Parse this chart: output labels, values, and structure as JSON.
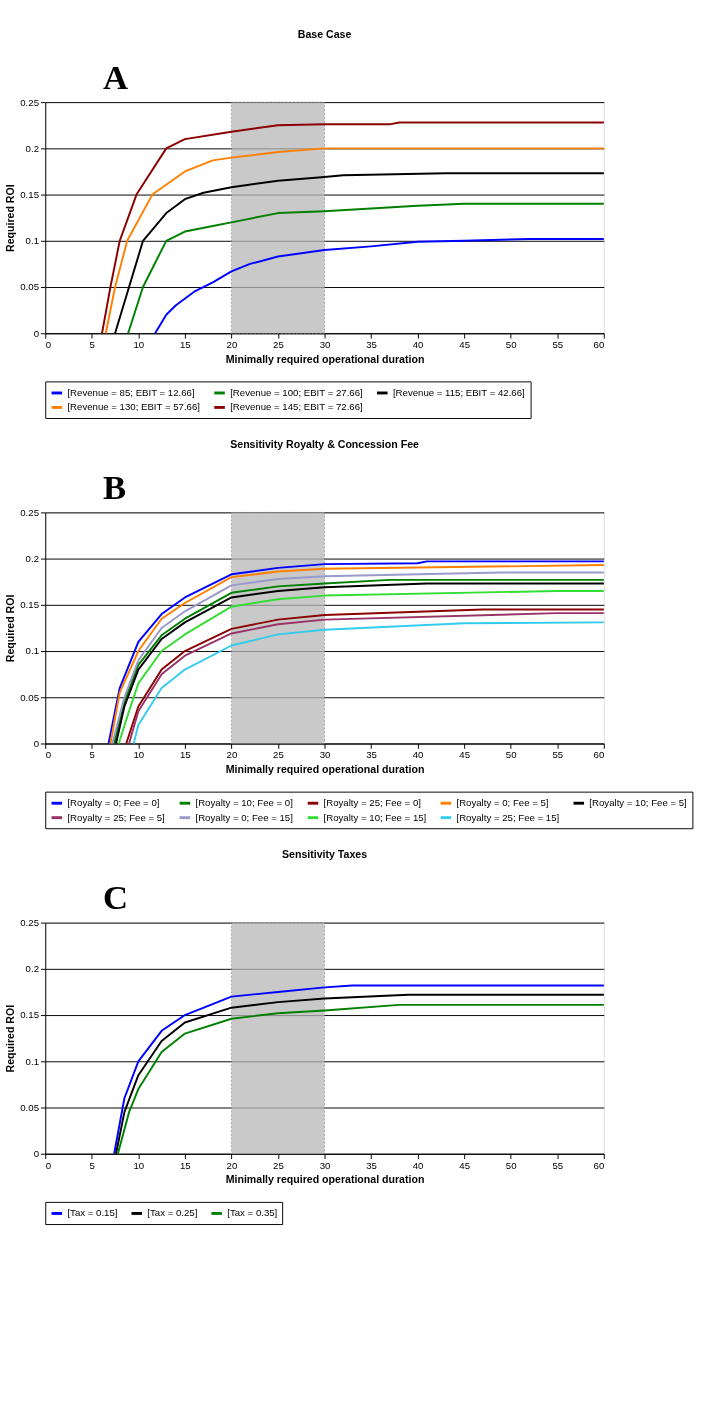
{
  "chart_data": [
    {
      "type": "line",
      "title": "Base Case",
      "annotations": [
        "A"
      ],
      "xlabel": "Minimally required operational duration",
      "ylabel": "Required ROI",
      "xlim": [
        0,
        60
      ],
      "ylim": [
        0,
        0.25
      ],
      "xticks": [
        0,
        5,
        10,
        15,
        20,
        25,
        30,
        35,
        40,
        45,
        50,
        55,
        60
      ],
      "yticks": [
        0,
        0.05,
        0.1,
        0.15,
        0.2,
        0.25
      ],
      "grid": "y",
      "legend": "bottom",
      "bands": [
        {
          "axis": "x",
          "from": 20,
          "to": 30,
          "color": "#b8b8b8"
        }
      ],
      "series": [
        {
          "name": "[Revenue = 85; EBIT = 12.66]",
          "color": "#0000ff",
          "x": [
            11.8,
            13,
            14,
            16,
            18,
            20,
            22,
            25,
            30,
            35,
            40,
            45,
            52,
            60
          ],
          "values": [
            0,
            0.02,
            0.03,
            0.045,
            0.055,
            0.067,
            0.075,
            0.083,
            0.09,
            0.094,
            0.099,
            0.1,
            0.102,
            0.102
          ]
        },
        {
          "name": "[Revenue = 100; EBIT = 27.66]",
          "color": "#008000",
          "x": [
            8.9,
            10.5,
            12,
            13,
            15,
            18,
            20,
            25,
            30,
            35,
            40,
            45,
            60
          ],
          "values": [
            0,
            0.05,
            0.08,
            0.1,
            0.11,
            0.116,
            0.12,
            0.13,
            0.132,
            0.135,
            0.138,
            0.14,
            0.14
          ]
        },
        {
          "name": "[Revenue = 115; EBIT = 42.66]",
          "color": "#000000",
          "x": [
            7.5,
            9,
            10.5,
            13,
            15,
            17,
            20,
            25,
            30,
            32,
            43,
            60
          ],
          "values": [
            0,
            0.05,
            0.1,
            0.13,
            0.145,
            0.152,
            0.158,
            0.165,
            0.169,
            0.171,
            0.173,
            0.173
          ]
        },
        {
          "name": "[Revenue = 130; EBIT = 57.66]",
          "color": "#ff7f00",
          "x": [
            6.5,
            7.5,
            8.8,
            11.5,
            15,
            18,
            20,
            25,
            30,
            60
          ],
          "values": [
            0,
            0.05,
            0.1,
            0.15,
            0.175,
            0.187,
            0.19,
            0.196,
            0.2,
            0.2
          ]
        },
        {
          "name": "[Revenue = 145; EBIT = 72.66]",
          "color": "#8b0000",
          "x": [
            6.1,
            7,
            8,
            9.8,
            13,
            15,
            20,
            25,
            30,
            37,
            38,
            60
          ],
          "values": [
            0,
            0.05,
            0.1,
            0.15,
            0.2,
            0.21,
            0.218,
            0.225,
            0.226,
            0.226,
            0.228,
            0.228
          ]
        }
      ]
    },
    {
      "type": "line",
      "title": "Sensitivity Royalty & Concession Fee",
      "annotations": [
        "B"
      ],
      "xlabel": "Minimally required operational duration",
      "ylabel": "Required ROI",
      "xlim": [
        0,
        60
      ],
      "ylim": [
        0,
        0.25
      ],
      "xticks": [
        0,
        5,
        10,
        15,
        20,
        25,
        30,
        35,
        40,
        45,
        50,
        55,
        60
      ],
      "yticks": [
        0,
        0.05,
        0.1,
        0.15,
        0.2,
        0.25
      ],
      "grid": "y",
      "legend": "bottom",
      "bands": [
        {
          "axis": "x",
          "from": 20,
          "to": 30,
          "color": "#b8b8b8"
        }
      ],
      "series": [
        {
          "name": "[Royalty = 0; Fee = 0]",
          "color": "#0000ff",
          "x": [
            6.8,
            8,
            10,
            12.5,
            15,
            20,
            25,
            30,
            40,
            41,
            60
          ],
          "values": [
            0,
            0.06,
            0.11,
            0.14,
            0.158,
            0.183,
            0.19,
            0.194,
            0.195,
            0.197,
            0.197
          ]
        },
        {
          "name": "[Royalty = 10; Fee = 0]",
          "color": "#008000",
          "x": [
            7.4,
            8.5,
            10,
            12.5,
            15,
            20,
            25,
            30,
            37,
            60
          ],
          "values": [
            0,
            0.045,
            0.085,
            0.117,
            0.135,
            0.163,
            0.17,
            0.173,
            0.177,
            0.177
          ]
        },
        {
          "name": "[Royalty = 25; Fee = 0]",
          "color": "#8b0000",
          "x": [
            8.7,
            10,
            12.5,
            15,
            20,
            25,
            30,
            47,
            60
          ],
          "values": [
            0,
            0.04,
            0.08,
            0.1,
            0.124,
            0.134,
            0.139,
            0.145,
            0.145
          ]
        },
        {
          "name": "[Royalty = 0; Fee = 5]",
          "color": "#ff7f00",
          "x": [
            7,
            8,
            10,
            12.5,
            15,
            20,
            25,
            30,
            60
          ],
          "values": [
            0,
            0.055,
            0.1,
            0.135,
            0.152,
            0.18,
            0.186,
            0.189,
            0.193
          ]
        },
        {
          "name": "[Royalty = 10; Fee = 5]",
          "color": "#000000",
          "x": [
            7.6,
            8.5,
            10,
            12.5,
            15,
            20,
            25,
            30,
            41,
            60
          ],
          "values": [
            0,
            0.04,
            0.08,
            0.113,
            0.131,
            0.158,
            0.165,
            0.169,
            0.173,
            0.173
          ]
        },
        {
          "name": "[Royalty = 25; Fee = 5]",
          "color": "#993366",
          "x": [
            9,
            10,
            12.5,
            15,
            20,
            25,
            30,
            55,
            60
          ],
          "values": [
            0,
            0.035,
            0.075,
            0.095,
            0.119,
            0.129,
            0.134,
            0.141,
            0.141
          ]
        },
        {
          "name": "[Royalty = 0; Fee = 15]",
          "color": "#9999cc",
          "x": [
            7.2,
            8.5,
            10,
            12.5,
            15,
            20,
            25,
            30,
            49,
            60
          ],
          "values": [
            0,
            0.05,
            0.09,
            0.125,
            0.143,
            0.171,
            0.178,
            0.181,
            0.185,
            0.185
          ]
        },
        {
          "name": "[Royalty = 10; Fee = 15]",
          "color": "#33dd33",
          "x": [
            7.9,
            9,
            10,
            12.5,
            15,
            20,
            25,
            30,
            55,
            60
          ],
          "values": [
            0,
            0.035,
            0.065,
            0.1,
            0.118,
            0.148,
            0.156,
            0.16,
            0.165,
            0.165
          ]
        },
        {
          "name": "[Royalty = 25; Fee = 15]",
          "color": "#33ccee",
          "x": [
            9.5,
            10,
            12.5,
            15,
            20,
            25,
            30,
            45,
            60
          ],
          "values": [
            0,
            0.02,
            0.06,
            0.08,
            0.106,
            0.118,
            0.123,
            0.13,
            0.131
          ]
        }
      ]
    },
    {
      "type": "line",
      "title": "Sensitivity Taxes",
      "annotations": [
        "C"
      ],
      "xlabel": "Minimally required operational duration",
      "ylabel": "Required ROI",
      "xlim": [
        0,
        60
      ],
      "ylim": [
        0,
        0.25
      ],
      "xticks": [
        0,
        5,
        10,
        15,
        20,
        25,
        30,
        35,
        40,
        45,
        50,
        55,
        60
      ],
      "yticks": [
        0,
        0.05,
        0.1,
        0.15,
        0.2,
        0.25
      ],
      "grid": "y",
      "legend": "bottom",
      "bands": [
        {
          "axis": "x",
          "from": 20,
          "to": 30,
          "color": "#b8b8b8"
        }
      ],
      "series": [
        {
          "name": "[Tax = 0.15]",
          "color": "#0000ff",
          "x": [
            7.4,
            8.5,
            10,
            12.5,
            15,
            20,
            25,
            30,
            33,
            60
          ],
          "values": [
            0,
            0.06,
            0.1,
            0.133,
            0.15,
            0.17,
            0.175,
            0.18,
            0.182,
            0.182
          ]
        },
        {
          "name": "[Tax = 0.25]",
          "color": "#000000",
          "x": [
            7.6,
            8.5,
            10,
            12.5,
            15,
            20,
            25,
            30,
            39,
            60
          ],
          "values": [
            0,
            0.045,
            0.085,
            0.122,
            0.142,
            0.158,
            0.164,
            0.168,
            0.172,
            0.172
          ]
        },
        {
          "name": "[Tax = 0.35]",
          "color": "#008000",
          "x": [
            7.8,
            9,
            10,
            12.5,
            15,
            20,
            25,
            30,
            38,
            60
          ],
          "values": [
            0,
            0.045,
            0.07,
            0.11,
            0.13,
            0.146,
            0.152,
            0.155,
            0.161,
            0.161
          ]
        }
      ]
    }
  ]
}
